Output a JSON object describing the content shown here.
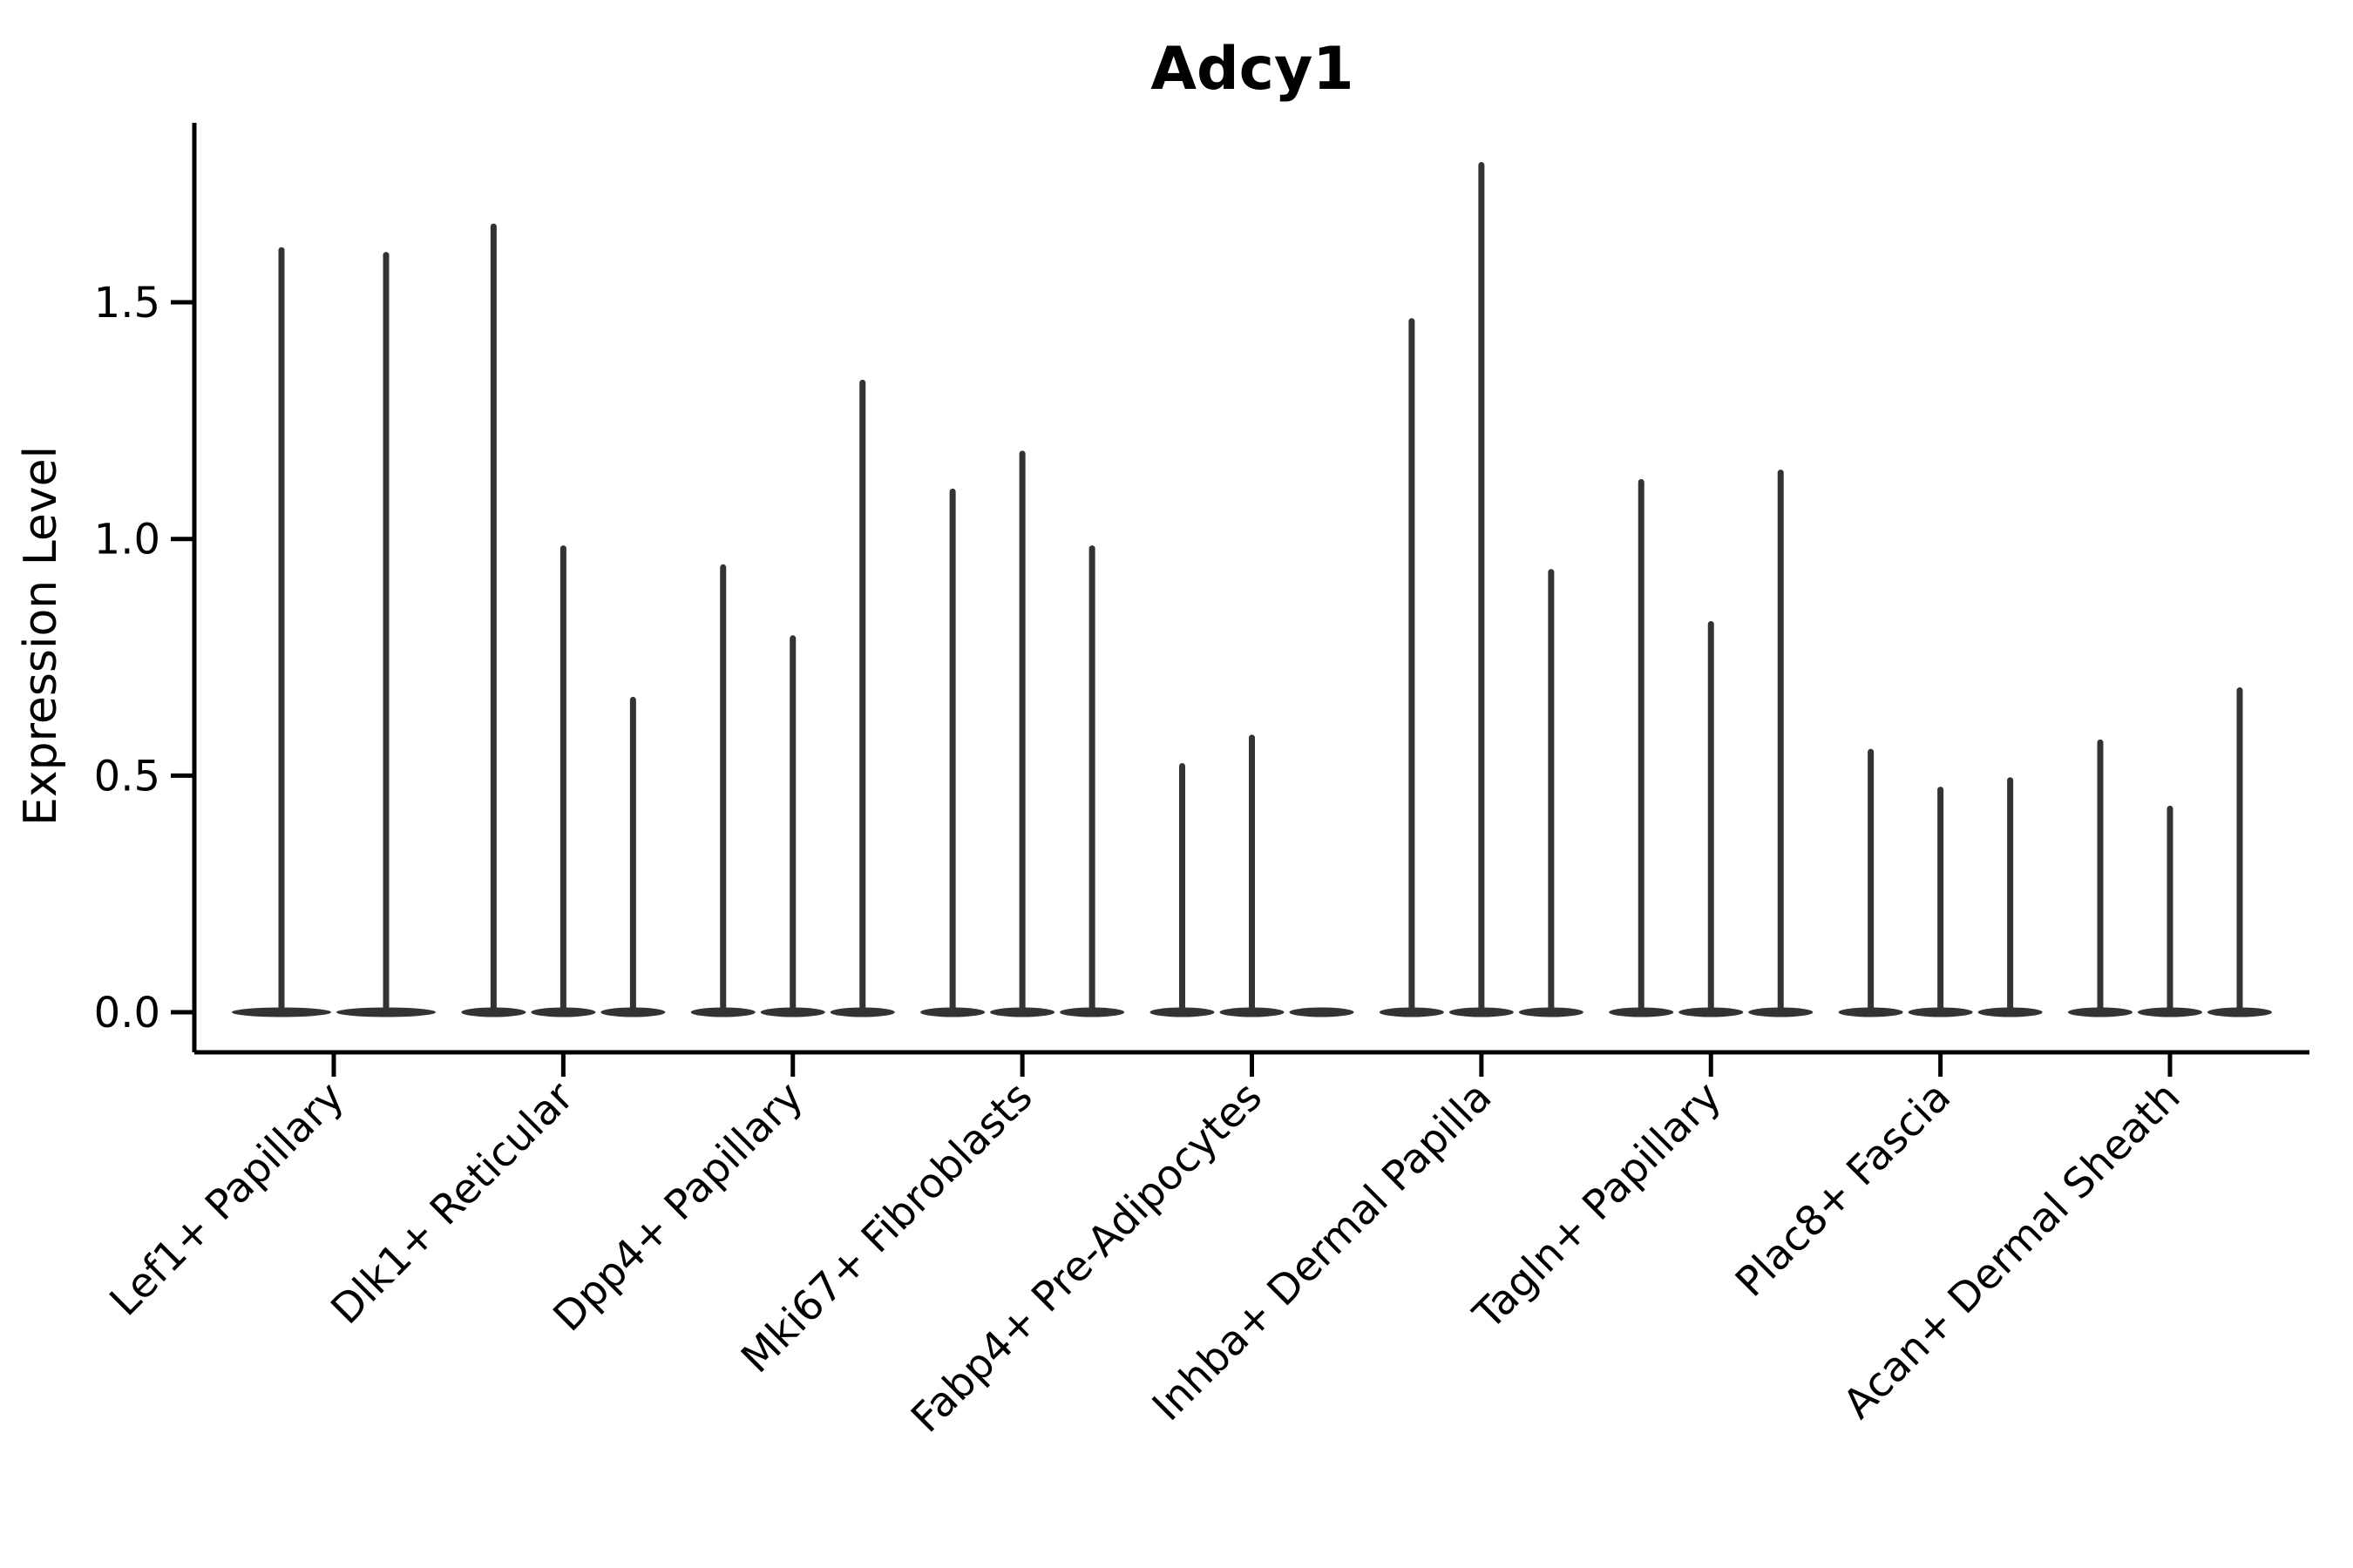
{
  "figure": {
    "background": "#ffffff"
  },
  "chart_data": {
    "type": "violin",
    "title": "Adcy1",
    "xlabel": "",
    "ylabel": "Expression Level",
    "ylim": [
      -0.085,
      1.88
    ],
    "yticks": [
      "0.0",
      "0.5",
      "1.0",
      "1.5"
    ],
    "ytick_values": [
      0.0,
      0.5,
      1.0,
      1.5
    ],
    "grid": false,
    "legend": false,
    "categories": [
      "Lef1+ Papillary",
      "Dlk1+ Reticular",
      "Dpp4+ Papillary",
      "Mki67+ Fibroblasts",
      "Fabp4+ Pre-Adipocytes",
      "Inhba+ Dermal Papilla",
      "Tagln+ Papillary",
      "Plac8+ Fascia",
      "Acan+ Dermal Sheath"
    ],
    "violins": [
      {
        "category": "Lef1+ Papillary",
        "max_values": [
          1.61,
          1.6
        ]
      },
      {
        "category": "Dlk1+ Reticular",
        "max_values": [
          1.66,
          0.98,
          0.66
        ]
      },
      {
        "category": "Dpp4+ Papillary",
        "max_values": [
          0.94,
          0.79,
          1.33
        ]
      },
      {
        "category": "Mki67+ Fibroblasts",
        "max_values": [
          1.1,
          1.18,
          0.98
        ]
      },
      {
        "category": "Fabp4+ Pre-Adipocytes",
        "max_values": [
          0.52,
          0.58,
          0.0
        ]
      },
      {
        "category": "Inhba+ Dermal Papilla",
        "max_values": [
          1.46,
          1.79,
          0.93
        ]
      },
      {
        "category": "Tagln+ Papillary",
        "max_values": [
          1.12,
          0.82,
          1.14
        ]
      },
      {
        "category": "Plac8+ Fascia",
        "max_values": [
          0.55,
          0.47,
          0.49
        ]
      },
      {
        "category": "Acan+ Dermal Sheath",
        "max_values": [
          0.57,
          0.43,
          0.68
        ]
      }
    ],
    "shape_note": "zero-inflated violins: wide flat density lens at 0 with a thin spike rising to the max expression value",
    "colors": {
      "violin": "#333333",
      "axis": "#000000",
      "text": "#000000",
      "background": "#ffffff"
    }
  }
}
